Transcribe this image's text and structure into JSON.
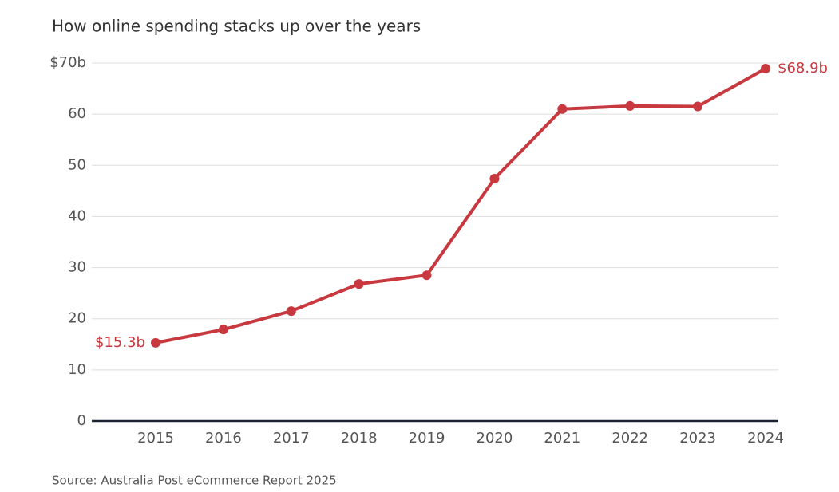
{
  "chart_data": {
    "type": "line",
    "title": "How online spending stacks up over the years",
    "source": "Source: Australia Post eCommerce Report 2025",
    "categories": [
      "2015",
      "2016",
      "2017",
      "2018",
      "2019",
      "2020",
      "2021",
      "2022",
      "2023",
      "2024"
    ],
    "values": [
      15.3,
      17.9,
      21.5,
      26.8,
      28.5,
      47.4,
      61.0,
      61.6,
      61.5,
      68.9
    ],
    "value_labels": [
      "$15.3b",
      null,
      null,
      null,
      null,
      null,
      null,
      null,
      null,
      "$68.9b"
    ],
    "color": "#c8393f",
    "ylim": [
      0,
      70
    ],
    "yticks": [
      0,
      10,
      20,
      30,
      40,
      50,
      60,
      {
        "value": 70,
        "label": "$70b"
      }
    ],
    "grid": true
  }
}
